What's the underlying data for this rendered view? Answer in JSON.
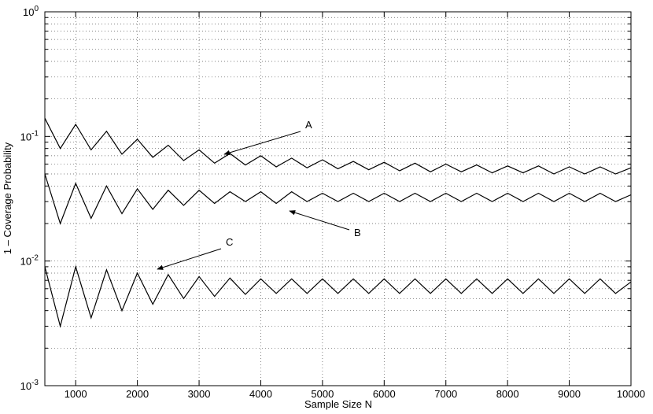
{
  "chart_data": {
    "type": "line",
    "xlabel": "Sample Size N",
    "ylabel": "1 – Coverage Probability",
    "log_y": true,
    "grid": true,
    "minor_grid": true,
    "xlim": [
      500,
      10000
    ],
    "ylim": [
      0.001,
      1
    ],
    "xticks": [
      1000,
      2000,
      3000,
      4000,
      5000,
      6000,
      7000,
      8000,
      9000,
      10000
    ],
    "yticks": [
      {
        "value": 0.001,
        "label": "10^-3"
      },
      {
        "value": 0.01,
        "label": "10^-2"
      },
      {
        "value": 0.1,
        "label": "10^-1"
      },
      {
        "value": 1,
        "label": "10^0"
      }
    ],
    "annotations": [
      "A",
      "B",
      "C"
    ],
    "x": [
      500,
      750,
      1000,
      1250,
      1500,
      1750,
      2000,
      2250,
      2500,
      2750,
      3000,
      3250,
      3500,
      3750,
      4000,
      4250,
      4500,
      4750,
      5000,
      5250,
      5500,
      5750,
      6000,
      6250,
      6500,
      6750,
      7000,
      7250,
      7500,
      7750,
      8000,
      8250,
      8500,
      8750,
      9000,
      9250,
      9500,
      9750,
      10000
    ],
    "series": [
      {
        "color": "#000000",
        "values": [
          0.14,
          0.08,
          0.125,
          0.078,
          0.11,
          0.072,
          0.095,
          0.068,
          0.085,
          0.064,
          0.078,
          0.061,
          0.073,
          0.059,
          0.07,
          0.057,
          0.067,
          0.056,
          0.065,
          0.055,
          0.063,
          0.054,
          0.062,
          0.053,
          0.061,
          0.052,
          0.06,
          0.052,
          0.059,
          0.051,
          0.058,
          0.051,
          0.058,
          0.05,
          0.057,
          0.05,
          0.057,
          0.05,
          0.056
        ]
      },
      {
        "color": "#000000",
        "values": [
          0.05,
          0.02,
          0.042,
          0.022,
          0.04,
          0.024,
          0.038,
          0.026,
          0.037,
          0.028,
          0.037,
          0.029,
          0.036,
          0.03,
          0.036,
          0.029,
          0.036,
          0.03,
          0.035,
          0.03,
          0.035,
          0.03,
          0.035,
          0.03,
          0.035,
          0.03,
          0.035,
          0.03,
          0.035,
          0.03,
          0.035,
          0.03,
          0.035,
          0.03,
          0.035,
          0.03,
          0.035,
          0.03,
          0.034
        ]
      },
      {
        "color": "#000000",
        "values": [
          0.009,
          0.003,
          0.009,
          0.0035,
          0.0085,
          0.004,
          0.008,
          0.0045,
          0.0078,
          0.005,
          0.0075,
          0.0052,
          0.0073,
          0.0054,
          0.0072,
          0.0055,
          0.0072,
          0.0055,
          0.0072,
          0.0055,
          0.0072,
          0.0055,
          0.0072,
          0.0055,
          0.0072,
          0.0055,
          0.0072,
          0.0055,
          0.0072,
          0.0055,
          0.0072,
          0.0055,
          0.0072,
          0.0055,
          0.0072,
          0.0055,
          0.0072,
          0.0055,
          0.0068
        ]
      }
    ]
  }
}
